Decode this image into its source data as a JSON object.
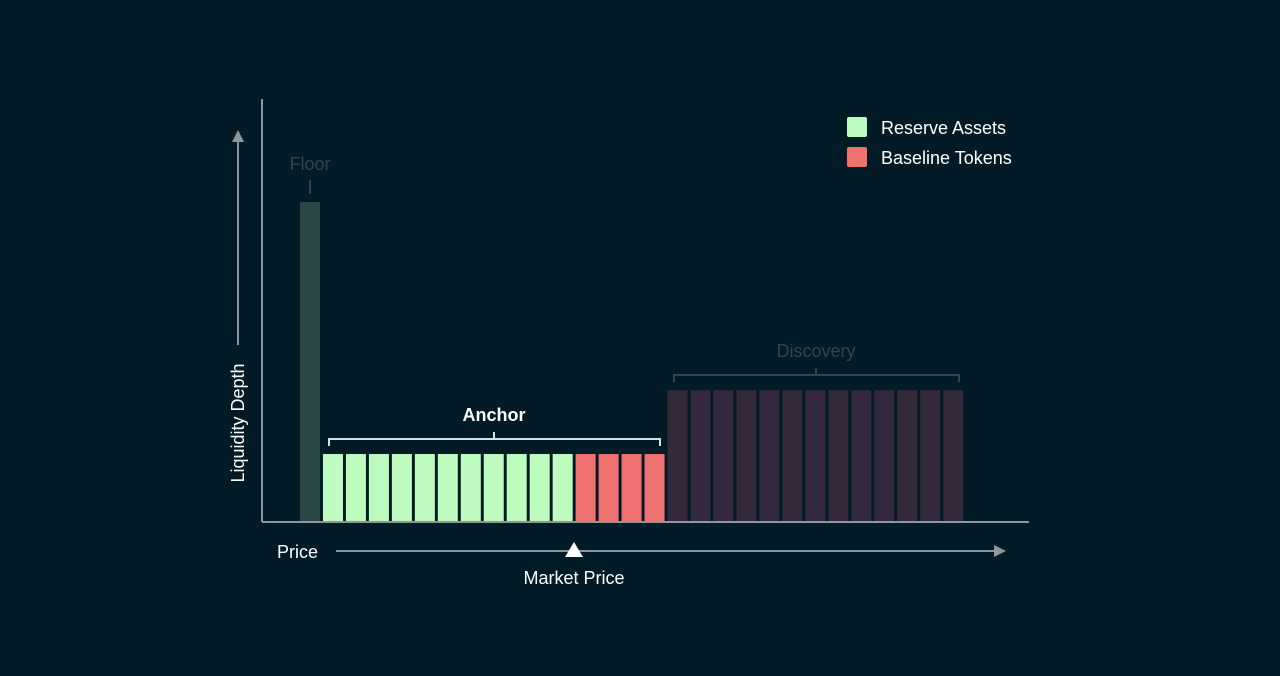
{
  "colors": {
    "background": "#031b27",
    "axis": "#8f979c",
    "floor": "#2a4845",
    "reserve": "#bdfbbe",
    "baseline": "#f07270",
    "discovery": "#33293a",
    "muted_label": "#2c4650",
    "white": "#ffffff"
  },
  "chart_data": {
    "type": "bar",
    "title": "",
    "xlabel": "Price",
    "ylabel": "Liquidity Depth",
    "legend": {
      "placement": "top-right",
      "items": [
        {
          "label": "Reserve Assets",
          "color": "#bdfbbe"
        },
        {
          "label": "Baseline Tokens",
          "color": "#f07270"
        }
      ]
    },
    "market_price_label": "Market Price",
    "series": [
      {
        "name": "Reserve Assets",
        "values": [
          0,
          21,
          21,
          21,
          21,
          21,
          21,
          21,
          21,
          21,
          21,
          21,
          0,
          0,
          0,
          0,
          0,
          0,
          0,
          0,
          0,
          0,
          0,
          0,
          0,
          0,
          0,
          0,
          0
        ]
      },
      {
        "name": "Baseline Tokens",
        "values": [
          0,
          0,
          0,
          0,
          0,
          0,
          0,
          0,
          0,
          0,
          0,
          0,
          21,
          21,
          21,
          21,
          0,
          0,
          0,
          0,
          0,
          0,
          0,
          0,
          0,
          0,
          0,
          0,
          0
        ]
      }
    ],
    "floor_value": 100,
    "discovery_value": 41,
    "ylim": [
      0,
      100
    ],
    "grid": false,
    "annotations": {
      "floor": "Floor",
      "anchor": "Anchor",
      "discovery": "Discovery"
    },
    "regions": {
      "floor": {
        "count": 1,
        "value": 100
      },
      "reserve": {
        "count": 11,
        "value": 21
      },
      "baseline": {
        "count": 4,
        "value": 21
      },
      "discovery": {
        "count": 13,
        "value": 41
      }
    }
  }
}
